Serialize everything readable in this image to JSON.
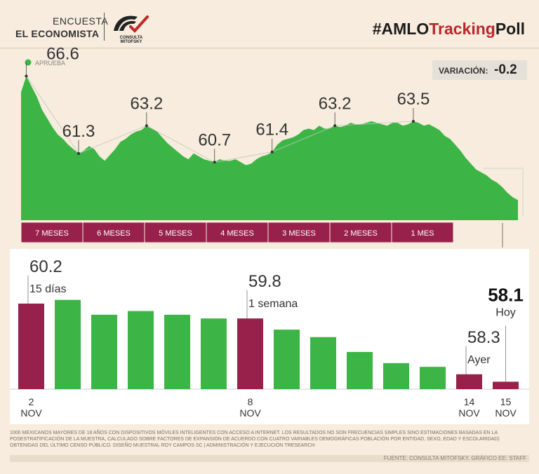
{
  "header": {
    "brand_line1": "ENCUESTA",
    "brand_line2": "EL ECONOMISTA",
    "logo_text": "CONSULTA MITOFSKY",
    "hashtag_prefix": "#AMLO",
    "hashtag_mid": "Tracking",
    "hashtag_suffix": "Poll"
  },
  "variation": {
    "label": "VARIACIÓN:",
    "value": "-0.2"
  },
  "colors": {
    "green": "#3db546",
    "maroon": "#97214a",
    "background": "#f7ecdd"
  },
  "chart_data": [
    {
      "type": "area",
      "legend": "APRUEBA",
      "area_values": [
        65.5,
        66.6,
        65.9,
        65.2,
        64.3,
        63.7,
        63.1,
        62.6,
        62.3,
        61.9,
        61.6,
        61.3,
        61.5,
        61.8,
        61.6,
        61.1,
        60.8,
        61.2,
        61.6,
        62.1,
        62.3,
        62.6,
        62.8,
        62.9,
        63.2,
        63.0,
        62.8,
        62.4,
        62.0,
        61.7,
        61.4,
        61.1,
        60.9,
        61.3,
        61.1,
        60.9,
        60.8,
        60.7,
        60.9,
        60.8,
        60.8,
        60.9,
        60.7,
        60.5,
        60.6,
        60.9,
        61.1,
        61.2,
        61.4,
        61.9,
        62.2,
        62.3,
        62.4,
        62.6,
        62.9,
        63.0,
        62.9,
        63.2,
        63.0,
        63.0,
        63.2,
        63.1,
        63.2,
        63.4,
        63.3,
        63.3,
        63.4,
        63.5,
        63.4,
        63.3,
        63.2,
        63.4,
        63.4,
        63.2,
        63.3,
        63.5,
        63.4,
        63.2,
        63.3,
        63.1,
        62.9,
        62.5,
        62.3,
        61.9,
        61.5,
        61.0,
        60.6,
        60.2,
        60.0,
        59.8,
        59.5,
        59.3,
        59.0,
        58.6,
        58.3,
        58.1
      ],
      "labels": [
        {
          "value": "66.6",
          "index": 1
        },
        {
          "value": "61.3",
          "index": 11
        },
        {
          "value": "63.2",
          "index": 24
        },
        {
          "value": "60.7",
          "index": 37
        },
        {
          "value": "61.4",
          "index": 48
        },
        {
          "value": "63.2",
          "index": 60
        },
        {
          "value": "63.5",
          "index": 75
        }
      ],
      "periods": [
        "7 MESES",
        "6 MESES",
        "5 MESES",
        "4 MESES",
        "3 MESES",
        "2 MESES",
        "1 MES"
      ]
    },
    {
      "type": "bar",
      "values": [
        60.2,
        60.3,
        59.9,
        60.0,
        59.9,
        59.8,
        59.8,
        59.5,
        59.3,
        58.9,
        58.6,
        58.5,
        58.3,
        58.1
      ],
      "highlight": [
        0,
        6,
        12,
        13
      ],
      "annotations": [
        {
          "index": 0,
          "value": "60.2",
          "text": "15 días"
        },
        {
          "index": 6,
          "value": "59.8",
          "text": "1 semana"
        },
        {
          "index": 12,
          "value": "58.3",
          "text": "Ayer"
        },
        {
          "index": 13,
          "value": "58.1",
          "text": "Hoy"
        }
      ],
      "x_labels": [
        {
          "index": 0,
          "day": "2",
          "month": "NOV"
        },
        {
          "index": 6,
          "day": "8",
          "month": "NOV"
        },
        {
          "index": 12,
          "day": "14",
          "month": "NOV"
        },
        {
          "index": 13,
          "day": "15",
          "month": "NOV"
        }
      ],
      "ylim": [
        57.9,
        60.35
      ]
    }
  ],
  "footnote": "1000 MEXICANOS MAYORES DE 18 AÑOS CON DISPOSITIVOS MÓVILES INTELIGENTES CON ACCESO A INTERNET. LOS RESULTADOS NO SON FRECUENCIAS SIMPLES SINO ESTIMACIONES BASADAS EN LA POSESTRATIFICACIÓN DE LA MUESTRA, CALCULADO SOBRE FACTORES DE EXPANSIÓN DE ACUERDO CON CUATRO VARIABLES DEMOGRÁFICAS POBLACIÓN POR ENTIDAD, SEXO, EDAD Y ESCOLARIDAD) OBTENIDAS DEL ÚLTIMO CENSO PÚBLICO. DISEÑO MUESTRAL ROY CAMPOS SC | ADMINISTRACIÓN Y EJECUCIÓN TRESEARCH",
  "source": "FUENTE: CONSULTA MITOFSKY. GRÁFICO EE: STAFF"
}
